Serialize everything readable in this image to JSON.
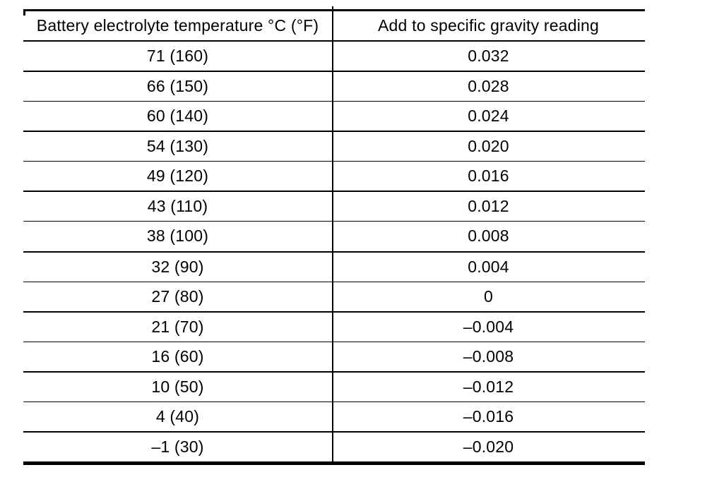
{
  "table": {
    "columns": [
      {
        "label": "Battery electrolyte temperature °C (°F)"
      },
      {
        "label": "Add to specific gravity reading"
      }
    ],
    "rows": [
      {
        "temp": "71 (160)",
        "correction": "0.032"
      },
      {
        "temp": "66 (150)",
        "correction": "0.028"
      },
      {
        "temp": "60 (140)",
        "correction": "0.024"
      },
      {
        "temp": "54 (130)",
        "correction": "0.020"
      },
      {
        "temp": "49 (120)",
        "correction": "0.016"
      },
      {
        "temp": "43 (110)",
        "correction": "0.012"
      },
      {
        "temp": "38 (100)",
        "correction": "0.008"
      },
      {
        "temp": "32 (90)",
        "correction": "0.004"
      },
      {
        "temp": "27 (80)",
        "correction": "0"
      },
      {
        "temp": "21 (70)",
        "correction": "–0.004"
      },
      {
        "temp": "16 (60)",
        "correction": "–0.008"
      },
      {
        "temp": "10 (50)",
        "correction": "–0.012"
      },
      {
        "temp": "4 (40)",
        "correction": "–0.016"
      },
      {
        "temp": "–1 (30)",
        "correction": "–0.020"
      }
    ],
    "line_color": "#000000"
  }
}
